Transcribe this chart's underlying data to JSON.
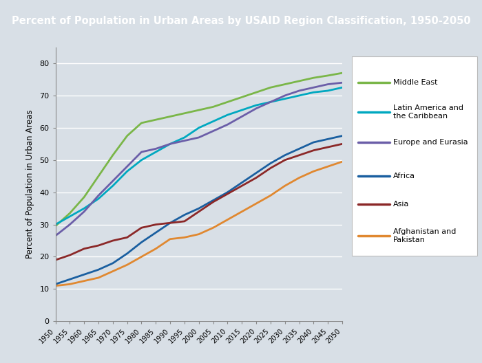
{
  "title": "Percent of Population in Urban Areas by USAID Region Classification, 1950-2050",
  "ylabel": "Percent of Population in Urban Areas",
  "title_bg_color": "#1e4d8c",
  "title_text_color": "#ffffff",
  "plot_bg_color": "#d8dfe6",
  "outer_bg_color": "#d8dfe6",
  "grid_color": "#ffffff",
  "ylim": [
    0,
    85
  ],
  "yticks": [
    0,
    10,
    20,
    30,
    40,
    50,
    60,
    70,
    80
  ],
  "years": [
    1950,
    1955,
    1960,
    1965,
    1970,
    1975,
    1980,
    1985,
    1990,
    1995,
    2000,
    2005,
    2010,
    2015,
    2020,
    2025,
    2030,
    2035,
    2040,
    2045,
    2050
  ],
  "series": {
    "Middle East": {
      "color": "#7ab648",
      "values": [
        29.5,
        33.5,
        38.5,
        45.0,
        51.5,
        57.5,
        61.5,
        62.5,
        63.5,
        64.5,
        65.5,
        66.5,
        68.0,
        69.5,
        71.0,
        72.5,
        73.5,
        74.5,
        75.5,
        76.2,
        77.0
      ]
    },
    "Latin America and\nthe Caribbean": {
      "color": "#00a8c0",
      "values": [
        30.0,
        32.5,
        35.0,
        38.0,
        42.0,
        46.5,
        50.0,
        52.5,
        55.0,
        57.0,
        60.0,
        62.0,
        64.0,
        65.5,
        67.0,
        68.0,
        69.0,
        70.0,
        71.0,
        71.5,
        72.5
      ]
    },
    "Europe and Eurasia": {
      "color": "#6b5ea8",
      "values": [
        26.5,
        30.0,
        34.0,
        39.0,
        43.5,
        48.0,
        52.5,
        53.5,
        55.0,
        56.0,
        57.0,
        59.0,
        61.0,
        63.5,
        66.0,
        68.0,
        70.0,
        71.5,
        72.5,
        73.5,
        74.0
      ]
    },
    "Africa": {
      "color": "#1a5fa0",
      "values": [
        11.5,
        13.0,
        14.5,
        16.0,
        18.0,
        21.0,
        24.5,
        27.5,
        30.5,
        33.0,
        35.0,
        37.5,
        40.0,
        43.0,
        46.0,
        49.0,
        51.5,
        53.5,
        55.5,
        56.5,
        57.5
      ]
    },
    "Asia": {
      "color": "#8b2828",
      "values": [
        19.0,
        20.5,
        22.5,
        23.5,
        25.0,
        26.0,
        29.0,
        30.0,
        30.5,
        31.0,
        34.0,
        37.0,
        39.5,
        42.0,
        44.5,
        47.5,
        50.0,
        51.5,
        53.0,
        54.0,
        55.0
      ]
    },
    "Afghanistan and\nPakistan": {
      "color": "#e08830",
      "values": [
        11.0,
        11.5,
        12.5,
        13.5,
        15.5,
        17.5,
        20.0,
        22.5,
        25.5,
        26.0,
        27.0,
        29.0,
        31.5,
        34.0,
        36.5,
        39.0,
        42.0,
        44.5,
        46.5,
        48.0,
        49.5
      ]
    }
  },
  "legend_series_order": [
    "Middle East",
    "Latin America and\nthe Caribbean",
    "Europe and Eurasia",
    "Africa",
    "Asia",
    "Afghanistan and\nPakistan"
  ],
  "legend_labels": [
    "Middle East",
    "Latin America and\nthe Caribbean",
    "Europe and Eurasia",
    "Africa",
    "Asia",
    "Afghanistan and\nPakistan"
  ]
}
